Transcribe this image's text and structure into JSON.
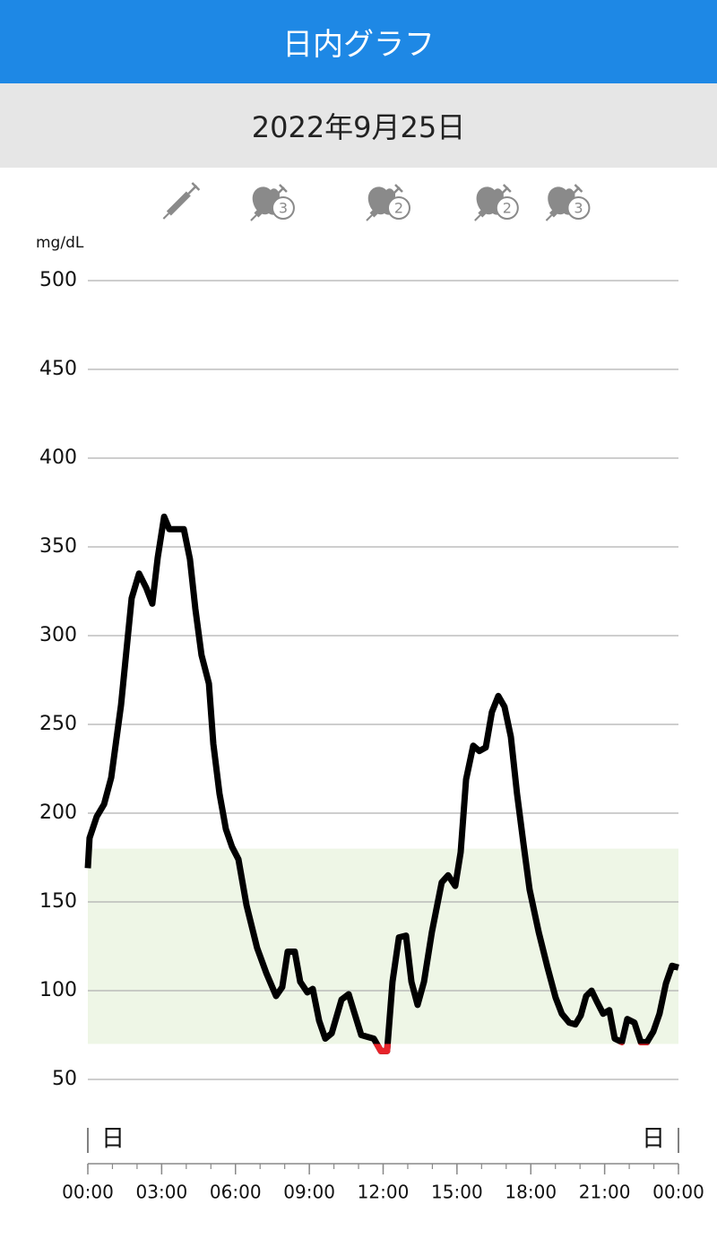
{
  "header": {
    "title": "日内グラフ",
    "date": "2022年9月25日"
  },
  "chart_data": {
    "type": "line",
    "y_unit": "mg/dL",
    "x": [
      0,
      0.07,
      0.36,
      0.66,
      0.95,
      1.35,
      1.78,
      2.08,
      2.37,
      2.62,
      2.84,
      3.1,
      3.31,
      3.57,
      3.9,
      4.15,
      4.37,
      4.62,
      4.92,
      5.1,
      5.35,
      5.61,
      5.86,
      6.12,
      6.45,
      6.88,
      7.25,
      7.65,
      7.9,
      8.12,
      8.41,
      8.63,
      8.92,
      9.14,
      9.4,
      9.65,
      9.91,
      10.31,
      10.6,
      10.82,
      11.11,
      11.36,
      11.62,
      11.91,
      12.16,
      12.38,
      12.64,
      12.93,
      13.15,
      13.4,
      13.66,
      13.98,
      14.38,
      14.64,
      14.93,
      15.15,
      15.37,
      15.66,
      15.91,
      16.17,
      16.42,
      16.68,
      16.93,
      17.19,
      17.44,
      17.7,
      17.95,
      18.32,
      18.68,
      19.01,
      19.26,
      19.56,
      19.81,
      20.03,
      20.25,
      20.47,
      20.68,
      20.94,
      21.19,
      21.41,
      21.7,
      21.92,
      22.21,
      22.47,
      22.72,
      22.98,
      23.23,
      23.49,
      23.74,
      24
    ],
    "values": [
      169,
      186,
      198,
      205,
      220,
      261,
      321,
      335,
      327,
      318,
      344,
      367,
      360,
      360,
      360,
      343,
      315,
      289,
      273,
      239,
      211,
      191,
      181,
      174,
      148,
      124,
      110,
      97,
      102,
      122,
      122,
      105,
      99,
      101,
      83,
      73,
      76,
      95,
      98,
      88,
      75,
      74,
      73,
      66,
      66,
      105,
      130,
      131,
      105,
      92,
      105,
      133,
      161,
      165,
      159,
      178,
      219,
      238,
      235,
      237,
      257,
      266,
      260,
      243,
      211,
      183,
      157,
      133,
      113,
      96,
      87,
      82,
      81,
      86,
      97,
      100,
      94,
      87,
      89,
      73,
      71,
      84,
      82,
      71,
      71,
      77,
      87,
      104,
      114,
      113
    ],
    "color": "#000000",
    "low_color": "#e8232a",
    "target_range": [
      70,
      180
    ],
    "target_color": "#eef6e6",
    "grid": true,
    "ylim": [
      50,
      500
    ],
    "yticks": [
      50,
      100,
      150,
      200,
      250,
      300,
      350,
      400,
      450,
      500
    ],
    "xlim": [
      0,
      24
    ],
    "xticks": [
      {
        "value": 0,
        "label": "00:00"
      },
      {
        "value": 3,
        "label": "03:00"
      },
      {
        "value": 6,
        "label": "06:00"
      },
      {
        "value": 9,
        "label": "09:00"
      },
      {
        "value": 12,
        "label": "12:00"
      },
      {
        "value": 15,
        "label": "15:00"
      },
      {
        "value": 18,
        "label": "18:00"
      },
      {
        "value": 21,
        "label": "21:00"
      },
      {
        "value": 24,
        "label": "00:00"
      }
    ],
    "xminor_step": 1,
    "day_markers": [
      "日",
      "日"
    ],
    "events": [
      {
        "x": 3.8,
        "kind": "syringe"
      },
      {
        "x": 7.5,
        "kind": "meal-insulin",
        "label": "3"
      },
      {
        "x": 12.2,
        "kind": "meal-insulin",
        "label": "2"
      },
      {
        "x": 16.6,
        "kind": "meal-insulin",
        "label": "2"
      },
      {
        "x": 19.5,
        "kind": "meal-insulin",
        "label": "3"
      }
    ]
  }
}
